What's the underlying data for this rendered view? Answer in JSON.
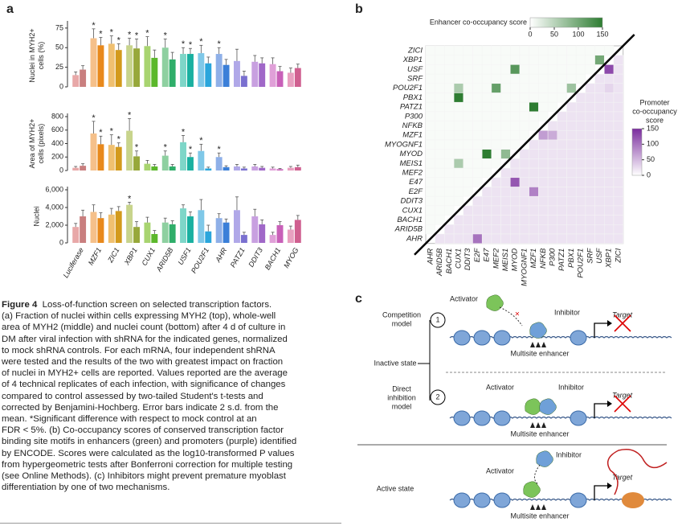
{
  "panel_a": {
    "label": "a",
    "star": "*",
    "categories": [
      "Luciferase",
      "MZF1",
      "ZIC1",
      "XBP1",
      "CUX1",
      "ARID5B",
      "USF1",
      "POU2F1",
      "AHR",
      "PATZ1",
      "DDIT3",
      "BACH1",
      "MYOG"
    ],
    "colors": [
      [
        "#e8a8a8",
        "#c97f7f"
      ],
      [
        "#f5c08a",
        "#e8891c"
      ],
      [
        "#f0c070",
        "#d39a1c"
      ],
      [
        "#c8d48c",
        "#97a83a"
      ],
      [
        "#a8d470",
        "#5cb82c"
      ],
      [
        "#8ed0a0",
        "#2fae6a"
      ],
      [
        "#7ed6c8",
        "#19b0a0"
      ],
      [
        "#7fc8e8",
        "#2aa6dc"
      ],
      [
        "#8fb0e8",
        "#3b7fd8"
      ],
      [
        "#b0a8e8",
        "#7a70d0"
      ],
      [
        "#c8a0e0",
        "#a068c8"
      ],
      [
        "#e0a0d8",
        "#c860b8"
      ],
      [
        "#e8a0c0",
        "#d06090"
      ]
    ],
    "charts": [
      {
        "type": "bar",
        "ylabel": [
          "Nuclei in MYH2+",
          "cells (%)"
        ],
        "ylim": [
          0,
          80
        ],
        "yticks": [
          0,
          25,
          50,
          75
        ],
        "values": [
          [
            15,
            22
          ],
          [
            62,
            53
          ],
          [
            55,
            47
          ],
          [
            53,
            49
          ],
          [
            52,
            37
          ],
          [
            50,
            35
          ],
          [
            42,
            42
          ],
          [
            43,
            30
          ],
          [
            42,
            28
          ],
          [
            33,
            14
          ],
          [
            32,
            30
          ],
          [
            29,
            20
          ],
          [
            18,
            24
          ]
        ],
        "errors": [
          [
            4,
            5
          ],
          [
            12,
            10
          ],
          [
            10,
            8
          ],
          [
            9,
            12
          ],
          [
            12,
            10
          ],
          [
            11,
            9
          ],
          [
            8,
            7
          ],
          [
            10,
            8
          ],
          [
            8,
            7
          ],
          [
            15,
            6
          ],
          [
            8,
            7
          ],
          [
            8,
            6
          ],
          [
            6,
            5
          ]
        ],
        "significant": [
          [
            0,
            0
          ],
          [
            1,
            1
          ],
          [
            1,
            1
          ],
          [
            1,
            1
          ],
          [
            1,
            0
          ],
          [
            1,
            0
          ],
          [
            1,
            1
          ],
          [
            1,
            0
          ],
          [
            1,
            0
          ],
          [
            0,
            0
          ],
          [
            0,
            0
          ],
          [
            0,
            0
          ],
          [
            0,
            0
          ]
        ]
      },
      {
        "type": "bar",
        "ylabel": [
          "Area of MYH2+",
          "cells (pixels)"
        ],
        "ylim": [
          0,
          800
        ],
        "yticks": [
          0,
          200,
          400,
          600,
          800
        ],
        "values": [
          [
            40,
            70
          ],
          [
            550,
            390
          ],
          [
            380,
            350
          ],
          [
            590,
            210
          ],
          [
            100,
            60
          ],
          [
            220,
            60
          ],
          [
            420,
            200
          ],
          [
            290,
            30
          ],
          [
            200,
            50
          ],
          [
            60,
            30
          ],
          [
            60,
            40
          ],
          [
            30,
            20
          ],
          [
            40,
            50
          ]
        ],
        "errors": [
          [
            20,
            30
          ],
          [
            180,
            120
          ],
          [
            150,
            60
          ],
          [
            180,
            80
          ],
          [
            50,
            30
          ],
          [
            70,
            30
          ],
          [
            100,
            60
          ],
          [
            100,
            20
          ],
          [
            60,
            20
          ],
          [
            30,
            20
          ],
          [
            30,
            20
          ],
          [
            20,
            10
          ],
          [
            20,
            30
          ]
        ],
        "significant": [
          [
            0,
            0
          ],
          [
            1,
            1
          ],
          [
            1,
            1
          ],
          [
            1,
            1
          ],
          [
            0,
            0
          ],
          [
            1,
            0
          ],
          [
            1,
            1
          ],
          [
            1,
            0
          ],
          [
            1,
            0
          ],
          [
            0,
            0
          ],
          [
            0,
            0
          ],
          [
            0,
            0
          ],
          [
            0,
            0
          ]
        ]
      },
      {
        "type": "bar",
        "ylabel": [
          "Nuclei"
        ],
        "ylim": [
          0,
          6000
        ],
        "yticks": [
          0,
          {
            "value": 2000,
            "label": "2,000"
          },
          {
            "value": 4000,
            "label": "4,000"
          },
          {
            "value": 6000,
            "label": "6,000"
          }
        ],
        "values": [
          [
            1800,
            3000
          ],
          [
            3500,
            2800
          ],
          [
            3200,
            3600
          ],
          [
            4300,
            1800
          ],
          [
            2300,
            1000
          ],
          [
            2300,
            2100
          ],
          [
            3900,
            3000
          ],
          [
            3700,
            1300
          ],
          [
            2800,
            2300
          ],
          [
            3700,
            900
          ],
          [
            3000,
            2100
          ],
          [
            900,
            2000
          ],
          [
            1500,
            2600
          ]
        ],
        "errors": [
          [
            400,
            700
          ],
          [
            800,
            600
          ],
          [
            700,
            500
          ],
          [
            300,
            600
          ],
          [
            600,
            400
          ],
          [
            500,
            400
          ],
          [
            400,
            500
          ],
          [
            1200,
            700
          ],
          [
            500,
            400
          ],
          [
            1500,
            300
          ],
          [
            800,
            500
          ],
          [
            300,
            400
          ],
          [
            400,
            500
          ]
        ],
        "significant": [
          [
            0,
            0
          ],
          [
            0,
            0
          ],
          [
            0,
            0
          ],
          [
            1,
            0
          ],
          [
            0,
            0
          ],
          [
            0,
            0
          ],
          [
            0,
            0
          ],
          [
            0,
            0
          ],
          [
            0,
            0
          ],
          [
            0,
            0
          ],
          [
            0,
            0
          ],
          [
            0,
            0
          ],
          [
            0,
            0
          ]
        ]
      }
    ]
  },
  "heatmap": {
    "label": "b",
    "rows": [
      "ZICI",
      "XBP1",
      "USF",
      "SRF",
      "POU2F1",
      "PBX1",
      "PATZ1",
      "P300",
      "NFKB",
      "MZF1",
      "MYOGNF1",
      "MYOD",
      "MEIS1",
      "MEF2",
      "E47",
      "E2F",
      "DDIT3",
      "CUX1",
      "BACH1",
      "ARID5B",
      "AHR"
    ],
    "columns": [
      "AHR",
      "ARID5B",
      "BACH1",
      "CUX1",
      "DDIT3",
      "E2F",
      "E47",
      "MEF2",
      "MEIS1",
      "MYOD",
      "MYOGNF1",
      "MZF1",
      "NFKB",
      "P300",
      "PATZ1",
      "PBX1",
      "POU2F1",
      "SRF",
      "USF",
      "XBP1",
      "ZICI"
    ],
    "enhancer_title": "Enhancer co-occupancy score",
    "enhancer_color": "#2e7d32",
    "enhancer_lim": [
      0,
      150
    ],
    "enhancer_ticks": [
      0,
      50,
      100,
      150
    ],
    "promoter_title": [
      "Promoter",
      "co-occupancy",
      "score"
    ],
    "promoter_color": "#7b2d9e",
    "promoter_lim": [
      0,
      150
    ],
    "promoter_ticks": [
      0,
      50,
      100,
      150
    ],
    "matrix": [
      [
        5,
        5,
        5,
        5,
        5,
        5,
        5,
        5,
        5,
        5,
        5,
        5,
        5,
        5,
        5,
        5,
        5,
        5,
        5,
        5,
        null
      ],
      [
        5,
        5,
        5,
        5,
        5,
        5,
        5,
        5,
        5,
        5,
        5,
        5,
        5,
        5,
        5,
        5,
        5,
        5,
        100,
        null,
        20
      ],
      [
        5,
        5,
        5,
        5,
        5,
        5,
        5,
        5,
        5,
        120,
        5,
        5,
        5,
        5,
        5,
        5,
        5,
        5,
        null,
        130,
        20
      ],
      [
        5,
        5,
        5,
        5,
        5,
        5,
        5,
        5,
        5,
        5,
        5,
        5,
        5,
        5,
        5,
        5,
        5,
        null,
        20,
        20,
        20
      ],
      [
        5,
        5,
        5,
        60,
        5,
        5,
        5,
        110,
        5,
        5,
        5,
        5,
        5,
        5,
        5,
        70,
        null,
        20,
        20,
        30,
        20
      ],
      [
        5,
        5,
        5,
        150,
        5,
        5,
        5,
        5,
        5,
        5,
        5,
        5,
        5,
        5,
        5,
        null,
        20,
        20,
        20,
        20,
        20
      ],
      [
        5,
        5,
        5,
        5,
        5,
        5,
        5,
        5,
        5,
        5,
        5,
        150,
        5,
        5,
        null,
        20,
        20,
        20,
        20,
        20,
        20
      ],
      [
        5,
        5,
        5,
        5,
        5,
        5,
        5,
        5,
        5,
        5,
        5,
        5,
        5,
        null,
        20,
        20,
        20,
        20,
        20,
        20,
        20
      ],
      [
        5,
        5,
        5,
        5,
        5,
        5,
        5,
        5,
        5,
        5,
        5,
        5,
        null,
        20,
        20,
        20,
        20,
        20,
        20,
        20,
        20
      ],
      [
        5,
        5,
        5,
        5,
        5,
        5,
        5,
        5,
        5,
        5,
        5,
        null,
        70,
        60,
        20,
        20,
        20,
        20,
        20,
        20,
        20
      ],
      [
        5,
        5,
        5,
        5,
        5,
        5,
        5,
        5,
        5,
        5,
        null,
        20,
        20,
        20,
        20,
        20,
        20,
        20,
        20,
        20,
        20
      ],
      [
        5,
        5,
        5,
        5,
        5,
        5,
        150,
        5,
        80,
        null,
        20,
        20,
        20,
        20,
        20,
        20,
        20,
        20,
        20,
        20,
        20
      ],
      [
        5,
        5,
        5,
        60,
        5,
        5,
        5,
        5,
        null,
        20,
        20,
        20,
        20,
        20,
        20,
        20,
        20,
        20,
        20,
        20,
        20
      ],
      [
        5,
        5,
        5,
        5,
        5,
        5,
        5,
        null,
        20,
        20,
        20,
        20,
        20,
        20,
        20,
        20,
        20,
        20,
        20,
        20,
        20
      ],
      [
        5,
        5,
        5,
        5,
        5,
        5,
        null,
        20,
        20,
        120,
        20,
        20,
        20,
        20,
        20,
        20,
        20,
        20,
        20,
        20,
        20
      ],
      [
        5,
        5,
        5,
        5,
        5,
        null,
        20,
        20,
        20,
        20,
        20,
        90,
        20,
        20,
        20,
        20,
        20,
        20,
        20,
        20,
        20
      ],
      [
        5,
        5,
        5,
        5,
        null,
        20,
        20,
        20,
        20,
        20,
        20,
        20,
        20,
        20,
        20,
        20,
        20,
        20,
        20,
        20,
        20
      ],
      [
        5,
        5,
        5,
        null,
        20,
        20,
        20,
        20,
        20,
        20,
        20,
        20,
        20,
        20,
        20,
        20,
        20,
        20,
        20,
        20,
        20
      ],
      [
        5,
        5,
        null,
        20,
        20,
        20,
        20,
        20,
        20,
        20,
        20,
        20,
        20,
        20,
        20,
        20,
        20,
        20,
        20,
        20,
        20
      ],
      [
        5,
        null,
        20,
        20,
        20,
        20,
        20,
        20,
        20,
        20,
        20,
        20,
        20,
        20,
        20,
        20,
        20,
        20,
        20,
        20,
        20
      ],
      [
        null,
        20,
        20,
        20,
        20,
        100,
        20,
        20,
        20,
        20,
        20,
        20,
        20,
        20,
        20,
        20,
        20,
        20,
        20,
        20,
        20
      ]
    ]
  },
  "diagram": {
    "label": "c",
    "activator": "Activator",
    "inhibitor": "Inhibitor",
    "target": "Target",
    "enhancer": "Multisite enhancer",
    "competition": [
      "Competition",
      "model"
    ],
    "one": "1",
    "two": "2",
    "direct": [
      "Direct",
      "inhibition",
      "model"
    ],
    "inactive": "Inactive state",
    "active": "Active state"
  },
  "caption": {
    "label": "Figure 4",
    "lines": [
      "Loss-of-function screen on selected transcription factors.",
      "(a) Fraction of nuclei within cells expressing MYH2 (top), whole-well",
      "area of MYH2 (middle) and nuclei count (bottom) after 4 d of culture in",
      "DM after viral infection with shRNA for the indicated genes, normalized",
      "to mock shRNA controls. For each mRNA, four independent shRNA",
      "were tested and the results of the two with greatest impact on fraction",
      "of nuclei in MYH2+ cells are reported. Values reported are the average",
      "of 4 technical replicates of each infection, with significance of changes",
      "compared to control assessed by two-tailed Student's t-tests and",
      "corrected by Benjamini-Hochberg. Error bars indicate 2 s.d. from the",
      "mean. *Significant difference with respect to mock control at an",
      "FDR < 5%. (b) Co-occupancy scores of conserved transcription factor",
      "binding site motifs in enhancers (green) and promoters (purple) identified",
      "by ENCODE. Scores were calculated as the log10-transformed P values",
      "from hypergeometric tests after Bonferroni correction for multiple testing",
      "(see Online Methods). (c) Inhibitors might prevent premature myoblast",
      "differentiation by one of two mechanisms."
    ]
  }
}
